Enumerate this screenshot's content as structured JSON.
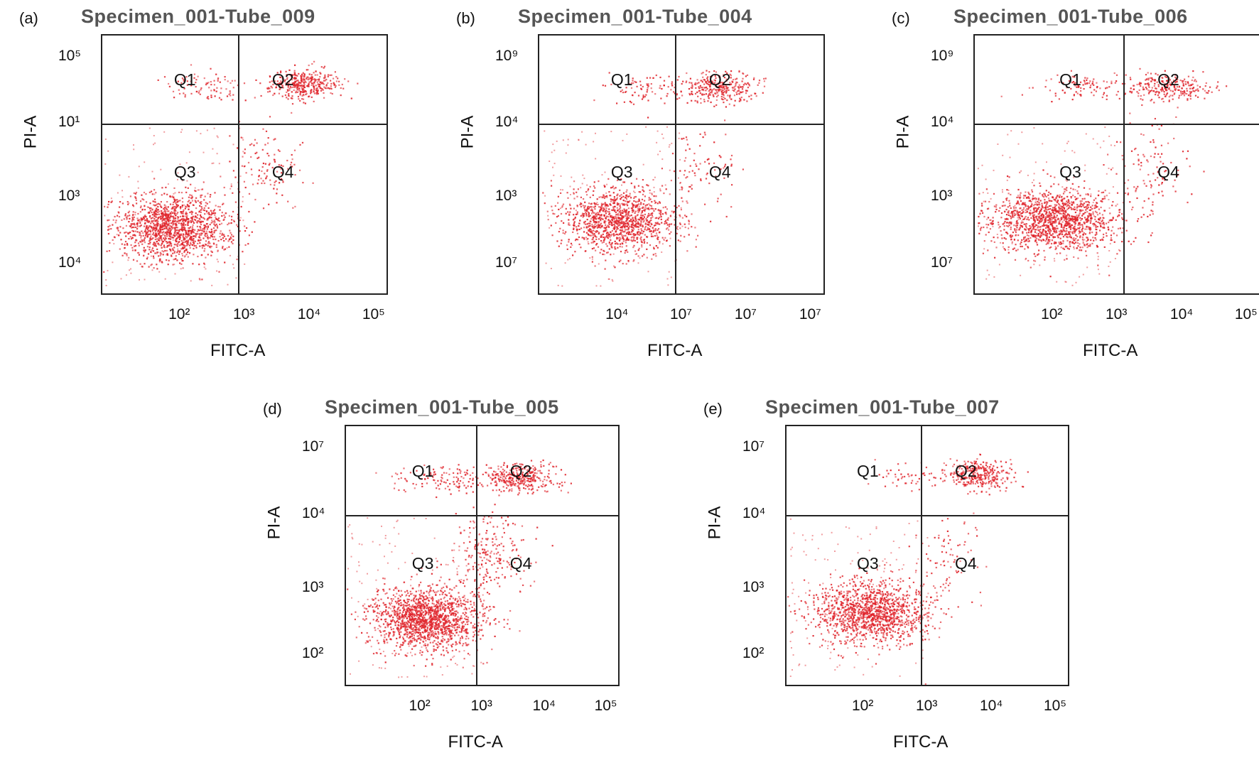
{
  "figure": {
    "chart_data": [
      {
        "type": "scatter",
        "panel_label": "(a)",
        "title": "Specimen_001-Tube_009",
        "xlabel": "FITC-A",
        "ylabel": "PI-A",
        "x_scale": "log",
        "y_scale": "log",
        "x_ticks": [
          "10²",
          "10³",
          "10⁴",
          "10⁵"
        ],
        "y_ticks": [
          "10⁵",
          "10¹",
          "10³",
          "10⁴"
        ],
        "quadrants": [
          "Q1",
          "Q2",
          "Q3",
          "Q4"
        ],
        "gate": {
          "x": 2.9,
          "y": 3.7
        },
        "clusters": [
          {
            "quadrant": "Q3",
            "x": 1.9,
            "y": 2.3,
            "sx": 0.45,
            "sy": 0.22,
            "n": 1400
          },
          {
            "quadrant": "Q2",
            "x": 3.9,
            "y": 4.25,
            "sx": 0.25,
            "sy": 0.1,
            "n": 380
          },
          {
            "quadrant": "Q1",
            "x": 2.4,
            "y": 4.2,
            "sx": 0.35,
            "sy": 0.1,
            "n": 90
          },
          {
            "quadrant": "Q4",
            "x": 3.3,
            "y": 3.1,
            "sx": 0.3,
            "sy": 0.28,
            "n": 120
          }
        ]
      },
      {
        "type": "scatter",
        "panel_label": "(b)",
        "title": "Specimen_001-Tube_004",
        "xlabel": "FITC-A",
        "ylabel": "PI-A",
        "x_scale": "log",
        "y_scale": "log",
        "x_ticks": [
          "10⁴",
          "10⁷",
          "10⁷",
          "10⁷"
        ],
        "y_ticks": [
          "10⁹",
          "10⁴",
          "10³",
          "10⁷"
        ],
        "quadrants": [
          "Q1",
          "Q2",
          "Q3",
          "Q4"
        ],
        "gate": {
          "x": 2.9,
          "y": 3.7
        },
        "clusters": [
          {
            "quadrant": "Q3",
            "x": 2.0,
            "y": 2.4,
            "sx": 0.45,
            "sy": 0.22,
            "n": 1200
          },
          {
            "quadrant": "Q2",
            "x": 3.6,
            "y": 4.2,
            "sx": 0.3,
            "sy": 0.1,
            "n": 300
          },
          {
            "quadrant": "Q1",
            "x": 2.5,
            "y": 4.2,
            "sx": 0.35,
            "sy": 0.1,
            "n": 90
          },
          {
            "quadrant": "Q4",
            "x": 3.3,
            "y": 3.1,
            "sx": 0.3,
            "sy": 0.28,
            "n": 80
          }
        ]
      },
      {
        "type": "scatter",
        "panel_label": "(c)",
        "title": "Specimen_001-Tube_006",
        "xlabel": "FITC-A",
        "ylabel": "PI-A",
        "x_scale": "log",
        "y_scale": "log",
        "x_ticks": [
          "10²",
          "10³",
          "10⁴",
          "10⁵"
        ],
        "y_ticks": [
          "10⁹",
          "10⁴",
          "10³",
          "10⁷"
        ],
        "quadrants": [
          "Q1",
          "Q2",
          "Q3",
          "Q4"
        ],
        "gate": {
          "x": 3.1,
          "y": 3.7
        },
        "clusters": [
          {
            "quadrant": "Q3",
            "x": 2.0,
            "y": 2.4,
            "sx": 0.5,
            "sy": 0.22,
            "n": 1400
          },
          {
            "quadrant": "Q2",
            "x": 3.8,
            "y": 4.2,
            "sx": 0.3,
            "sy": 0.1,
            "n": 260
          },
          {
            "quadrant": "Q1",
            "x": 2.5,
            "y": 4.2,
            "sx": 0.4,
            "sy": 0.1,
            "n": 100
          },
          {
            "quadrant": "Q4",
            "x": 3.5,
            "y": 3.1,
            "sx": 0.28,
            "sy": 0.3,
            "n": 110
          }
        ]
      },
      {
        "type": "scatter",
        "panel_label": "(d)",
        "title": "Specimen_001-Tube_005",
        "xlabel": "FITC-A",
        "ylabel": "PI-A",
        "x_scale": "log",
        "y_scale": "log",
        "x_ticks": [
          "10²",
          "10³",
          "10⁴",
          "10⁵"
        ],
        "y_ticks": [
          "10⁷",
          "10⁴",
          "10³",
          "10²"
        ],
        "quadrants": [
          "Q1",
          "Q2",
          "Q3",
          "Q4"
        ],
        "gate": {
          "x": 2.9,
          "y": 3.7
        },
        "clusters": [
          {
            "quadrant": "Q3",
            "x": 2.1,
            "y": 2.3,
            "sx": 0.45,
            "sy": 0.22,
            "n": 1500
          },
          {
            "quadrant": "Q2",
            "x": 3.6,
            "y": 4.2,
            "sx": 0.3,
            "sy": 0.1,
            "n": 330
          },
          {
            "quadrant": "Q1",
            "x": 2.4,
            "y": 4.2,
            "sx": 0.4,
            "sy": 0.1,
            "n": 120
          },
          {
            "quadrant": "Q4",
            "x": 3.1,
            "y": 3.2,
            "sx": 0.3,
            "sy": 0.3,
            "n": 220
          }
        ]
      },
      {
        "type": "scatter",
        "panel_label": "(e)",
        "title": "Specimen_001-Tube_007",
        "xlabel": "FITC-A",
        "ylabel": "PI-A",
        "x_scale": "log",
        "y_scale": "log",
        "x_ticks": [
          "10²",
          "10³",
          "10⁴",
          "10⁵"
        ],
        "y_ticks": [
          "10⁷",
          "10⁴",
          "10³",
          "10²"
        ],
        "quadrants": [
          "Q1",
          "Q2",
          "Q3",
          "Q4"
        ],
        "gate": {
          "x": 2.9,
          "y": 3.7
        },
        "clusters": [
          {
            "quadrant": "Q3",
            "x": 2.1,
            "y": 2.4,
            "sx": 0.45,
            "sy": 0.22,
            "n": 1300
          },
          {
            "quadrant": "Q2",
            "x": 3.8,
            "y": 4.25,
            "sx": 0.25,
            "sy": 0.1,
            "n": 330
          },
          {
            "quadrant": "Q1",
            "x": 2.7,
            "y": 4.2,
            "sx": 0.3,
            "sy": 0.1,
            "n": 50
          },
          {
            "quadrant": "Q4",
            "x": 3.3,
            "y": 3.1,
            "sx": 0.3,
            "sy": 0.3,
            "n": 80
          }
        ]
      }
    ],
    "dot_color": "#e0242b"
  }
}
